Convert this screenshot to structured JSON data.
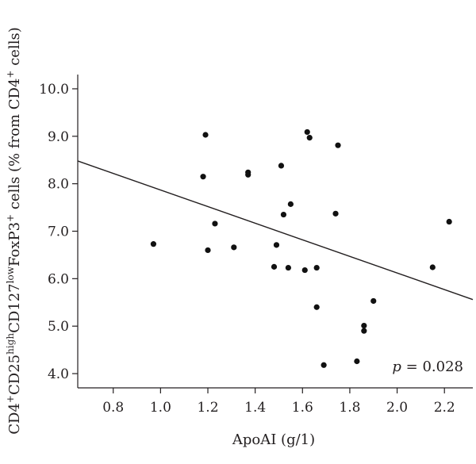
{
  "chart_data": {
    "type": "scatter",
    "xlabel": "ApoAI (g/1)",
    "ylabel_parts": [
      {
        "t": "CD4",
        "sup": false
      },
      {
        "t": "+",
        "sup": true
      },
      {
        "t": "CD25",
        "sup": false
      },
      {
        "t": "high",
        "sup": true
      },
      {
        "t": "CD127",
        "sup": false
      },
      {
        "t": "low",
        "sup": true
      },
      {
        "t": "FoxP3",
        "sup": false
      },
      {
        "t": "+",
        "sup": true
      },
      {
        "t": " cells (% from CD4",
        "sup": false
      },
      {
        "t": "+",
        "sup": true
      },
      {
        "t": " cells)",
        "sup": false
      }
    ],
    "xlim": [
      0.65,
      2.32
    ],
    "ylim": [
      3.7,
      10.3
    ],
    "xticks": [
      "0.8",
      "1.0",
      "1.2",
      "1.4",
      "1.6",
      "1.8",
      "2.0",
      "2.2"
    ],
    "yticks": [
      "4.0",
      "5.0",
      "6.0",
      "7.0",
      "8.0",
      "9.0",
      "10.0"
    ],
    "annotation": {
      "italic": "p",
      "rest": " = 0.028"
    },
    "grid": false,
    "series": [
      {
        "points": [
          {
            "x": 0.97,
            "y": 6.73
          },
          {
            "x": 1.18,
            "y": 8.15
          },
          {
            "x": 1.19,
            "y": 9.03
          },
          {
            "x": 1.2,
            "y": 6.6
          },
          {
            "x": 1.23,
            "y": 7.16
          },
          {
            "x": 1.31,
            "y": 6.66
          },
          {
            "x": 1.37,
            "y": 8.24
          },
          {
            "x": 1.37,
            "y": 8.19
          },
          {
            "x": 1.48,
            "y": 6.25
          },
          {
            "x": 1.49,
            "y": 6.71
          },
          {
            "x": 1.51,
            "y": 8.38
          },
          {
            "x": 1.52,
            "y": 7.35
          },
          {
            "x": 1.54,
            "y": 6.23
          },
          {
            "x": 1.55,
            "y": 7.57
          },
          {
            "x": 1.61,
            "y": 6.18
          },
          {
            "x": 1.62,
            "y": 9.09
          },
          {
            "x": 1.63,
            "y": 8.97
          },
          {
            "x": 1.66,
            "y": 6.23
          },
          {
            "x": 1.66,
            "y": 5.4
          },
          {
            "x": 1.69,
            "y": 4.18
          },
          {
            "x": 1.74,
            "y": 7.37
          },
          {
            "x": 1.75,
            "y": 8.81
          },
          {
            "x": 1.83,
            "y": 4.26
          },
          {
            "x": 1.86,
            "y": 5.01
          },
          {
            "x": 1.86,
            "y": 4.9
          },
          {
            "x": 1.9,
            "y": 5.53
          },
          {
            "x": 2.15,
            "y": 6.24
          },
          {
            "x": 2.22,
            "y": 7.2
          }
        ]
      }
    ],
    "fit_line": {
      "x": [
        0.65,
        2.32
      ],
      "y": [
        8.48,
        5.56
      ]
    }
  }
}
